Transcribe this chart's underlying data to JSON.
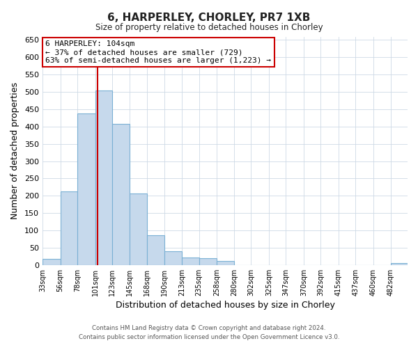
{
  "title": "6, HARPERLEY, CHORLEY, PR7 1XB",
  "subtitle": "Size of property relative to detached houses in Chorley",
  "xlabel": "Distribution of detached houses by size in Chorley",
  "ylabel": "Number of detached properties",
  "bin_labels": [
    "33sqm",
    "56sqm",
    "78sqm",
    "101sqm",
    "123sqm",
    "145sqm",
    "168sqm",
    "190sqm",
    "213sqm",
    "235sqm",
    "258sqm",
    "280sqm",
    "302sqm",
    "325sqm",
    "347sqm",
    "370sqm",
    "392sqm",
    "415sqm",
    "437sqm",
    "460sqm",
    "482sqm"
  ],
  "bin_edges": [
    33,
    56,
    78,
    101,
    123,
    145,
    168,
    190,
    213,
    235,
    258,
    280,
    302,
    325,
    347,
    370,
    392,
    415,
    437,
    460,
    482
  ],
  "bar_heights": [
    18,
    213,
    437,
    504,
    408,
    207,
    87,
    40,
    22,
    19,
    12,
    0,
    0,
    0,
    0,
    0,
    0,
    0,
    0,
    0,
    5
  ],
  "bar_color": "#c6d9ec",
  "bar_edge_color": "#7ab0d4",
  "vline_x": 104,
  "vline_color": "#cc0000",
  "ylim": [
    0,
    660
  ],
  "yticks": [
    0,
    50,
    100,
    150,
    200,
    250,
    300,
    350,
    400,
    450,
    500,
    550,
    600,
    650
  ],
  "annotation_line1": "6 HARPERLEY: 104sqm",
  "annotation_line2": "← 37% of detached houses are smaller (729)",
  "annotation_line3": "63% of semi-detached houses are larger (1,223) →",
  "annotation_box_color": "#ffffff",
  "annotation_box_edge": "#cc0000",
  "footer_line1": "Contains HM Land Registry data © Crown copyright and database right 2024.",
  "footer_line2": "Contains public sector information licensed under the Open Government Licence v3.0.",
  "bg_color": "#ffffff",
  "grid_color": "#cdd9e5"
}
